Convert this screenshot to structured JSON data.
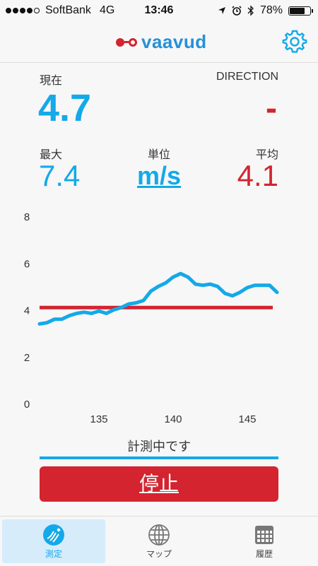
{
  "status_bar": {
    "carrier": "SoftBank",
    "network": "4G",
    "time": "13:46",
    "battery": "78%",
    "battery_level": 0.78
  },
  "header": {
    "logo_text": "vaavud",
    "settings_icon": "gear-icon"
  },
  "current": {
    "label": "現在",
    "value": "4.7"
  },
  "direction": {
    "label": "DIRECTION",
    "value": "-"
  },
  "max": {
    "label": "最大",
    "value": "7.4"
  },
  "unit": {
    "label": "単位",
    "value": "m/s"
  },
  "avg": {
    "label": "平均",
    "value": "4.1"
  },
  "chart_data": {
    "type": "line",
    "yticks": [
      "0",
      "2",
      "4",
      "6",
      "8"
    ],
    "xticks": [
      "135",
      "140",
      "145"
    ],
    "xlim": [
      131,
      147
    ],
    "ylim": [
      0,
      8
    ],
    "average_line": 4.1,
    "x": [
      131,
      131.5,
      132,
      132.5,
      133,
      133.5,
      134,
      134.5,
      135,
      135.5,
      136,
      136.5,
      137,
      137.5,
      138,
      138.5,
      139,
      139.5,
      140,
      140.5,
      141,
      141.5,
      142,
      142.5,
      143,
      143.5,
      144,
      144.5,
      145,
      145.5,
      146,
      146.5,
      147
    ],
    "y": [
      3.4,
      3.45,
      3.6,
      3.6,
      3.75,
      3.85,
      3.9,
      3.85,
      3.95,
      3.85,
      4.0,
      4.1,
      4.25,
      4.3,
      4.4,
      4.8,
      5.0,
      5.15,
      5.4,
      5.55,
      5.4,
      5.1,
      5.05,
      5.1,
      5.0,
      4.7,
      4.6,
      4.75,
      4.95,
      5.05,
      5.05,
      5.05,
      4.75
    ],
    "colors": {
      "line": "#14a9e8",
      "average": "#d32430"
    }
  },
  "measure_status": "計測中です",
  "stop_button": "停止",
  "tabs": [
    {
      "label": "測定",
      "icon": "measure-icon",
      "active": true
    },
    {
      "label": "マップ",
      "icon": "globe-icon",
      "active": false
    },
    {
      "label": "履歴",
      "icon": "calendar-icon",
      "active": false
    }
  ]
}
